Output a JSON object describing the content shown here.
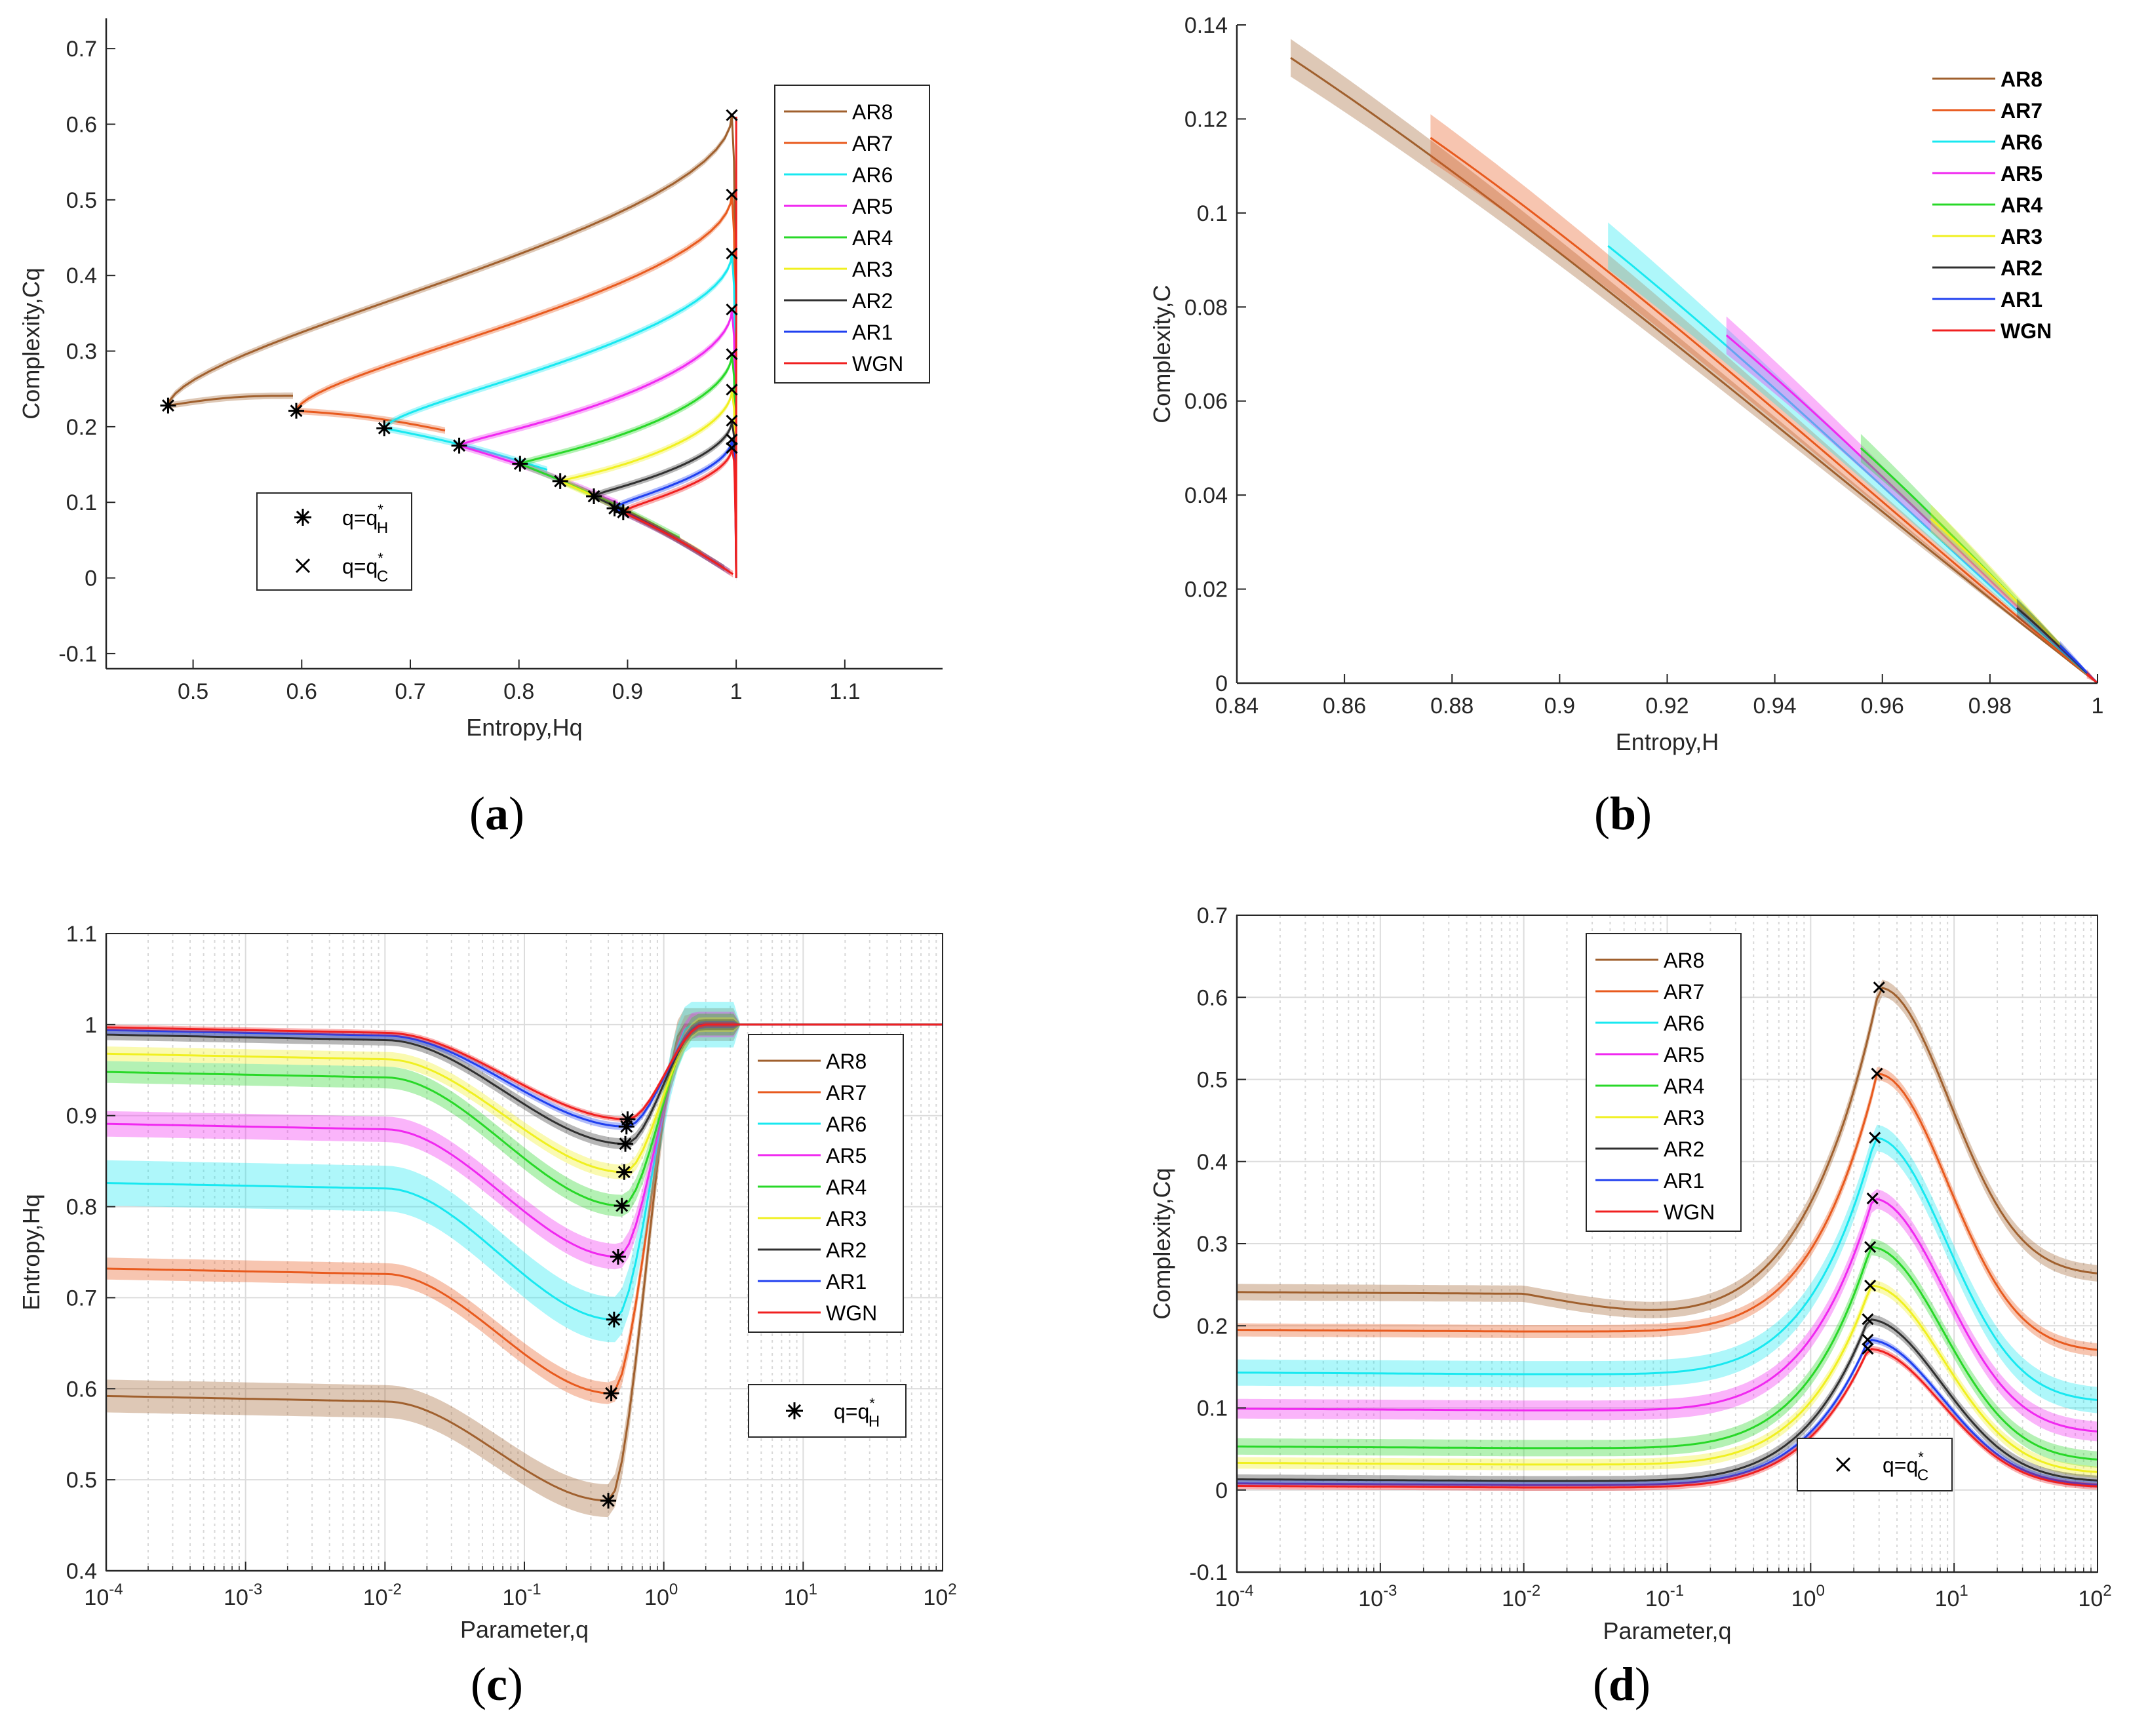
{
  "series_colors": {
    "AR8": "#a0602e",
    "AR7": "#e85a1e",
    "AR6": "#18e8f0",
    "AR5": "#f028f0",
    "AR4": "#28d828",
    "AR3": "#f0f020",
    "AR2": "#303030",
    "AR1": "#2040f0",
    "WGN": "#f02020"
  },
  "chart_data": [
    {
      "id": "a",
      "caption": "a",
      "type": "line",
      "xlabel": "Entropy,Hq",
      "ylabel": "Complexity,Cq",
      "xlim": [
        0.42,
        1.19
      ],
      "ylim": [
        -0.12,
        0.74
      ],
      "xticks": [
        0.5,
        0.6,
        0.7,
        0.8,
        0.9,
        1,
        1.1
      ],
      "xtick_labels": [
        "0.5",
        "0.6",
        "0.7",
        "0.8",
        "0.9",
        "1",
        "1.1"
      ],
      "yticks": [
        -0.1,
        0,
        0.1,
        0.2,
        0.3,
        0.4,
        0.5,
        0.6,
        0.7
      ],
      "ytick_labels": [
        "-0.1",
        "0",
        "0.1",
        "0.2",
        "0.3",
        "0.4",
        "0.5",
        "0.6",
        "0.7"
      ],
      "grid": false,
      "legend": [
        "AR8",
        "AR7",
        "AR6",
        "AR5",
        "AR4",
        "AR3",
        "AR2",
        "AR1",
        "WGN"
      ],
      "legend_position": "top-right",
      "marker_legend": [
        {
          "symbol": "*",
          "label": "q=q",
          "sup": "*",
          "sub": "H"
        },
        {
          "symbol": "×",
          "label": "q=q",
          "sup": "*",
          "sub": "C"
        }
      ],
      "marker_legend_position": "bottom-left",
      "series": [
        {
          "name": "AR8",
          "H_low": 0.592,
          "C_low": 0.241,
          "H_min": 0.477,
          "C_at_Hmin": 0.228,
          "C_mid": 0.22,
          "C_max": 0.612
        },
        {
          "name": "AR7",
          "H_low": 0.732,
          "C_low": 0.195,
          "H_min": 0.595,
          "C_at_Hmin": 0.221,
          "C_mid": 0.205,
          "C_max": 0.507
        },
        {
          "name": "AR6",
          "H_low": 0.826,
          "C_low": 0.143,
          "H_min": 0.676,
          "C_at_Hmin": 0.198,
          "C_mid": 0.175,
          "C_max": 0.429
        },
        {
          "name": "AR5",
          "H_low": 0.891,
          "C_low": 0.099,
          "H_min": 0.745,
          "C_at_Hmin": 0.175,
          "C_mid": 0.14,
          "C_max": 0.355
        },
        {
          "name": "AR4",
          "H_low": 0.948,
          "C_low": 0.053,
          "H_min": 0.801,
          "C_at_Hmin": 0.151,
          "C_mid": 0.12,
          "C_max": 0.296
        },
        {
          "name": "AR3",
          "H_low": 0.968,
          "C_low": 0.033,
          "H_min": 0.838,
          "C_at_Hmin": 0.128,
          "C_mid": 0.1,
          "C_max": 0.249
        },
        {
          "name": "AR2",
          "H_low": 0.989,
          "C_low": 0.013,
          "H_min": 0.869,
          "C_at_Hmin": 0.108,
          "C_mid": 0.09,
          "C_max": 0.208
        },
        {
          "name": "AR1",
          "H_low": 0.994,
          "C_low": 0.008,
          "H_min": 0.888,
          "C_at_Hmin": 0.092,
          "C_mid": 0.08,
          "C_max": 0.183
        },
        {
          "name": "WGN",
          "H_low": 0.997,
          "C_low": 0.005,
          "H_min": 0.896,
          "C_at_Hmin": 0.087,
          "C_mid": 0.075,
          "C_max": 0.172
        }
      ]
    },
    {
      "id": "b",
      "caption": "b",
      "type": "line",
      "xlabel": "Entropy,H",
      "ylabel": "Complexity,C",
      "xlim": [
        0.84,
        1.0
      ],
      "ylim": [
        0,
        0.14
      ],
      "xticks": [
        0.84,
        0.86,
        0.88,
        0.9,
        0.92,
        0.94,
        0.96,
        0.98,
        1
      ],
      "xtick_labels": [
        "0.84",
        "0.86",
        "0.88",
        "0.9",
        "0.92",
        "0.94",
        "0.96",
        "0.98",
        "1"
      ],
      "yticks": [
        0,
        0.02,
        0.04,
        0.06,
        0.08,
        0.1,
        0.12,
        0.14
      ],
      "ytick_labels": [
        "0",
        "0.02",
        "0.04",
        "0.06",
        "0.08",
        "0.1",
        "0.12",
        "0.14"
      ],
      "grid": false,
      "legend": [
        "AR8",
        "AR7",
        "AR6",
        "AR5",
        "AR4",
        "AR3",
        "AR2",
        "AR1",
        "WGN"
      ],
      "legend_position": "top-right",
      "series": [
        {
          "name": "AR8",
          "H_start": 0.85,
          "C_start": 0.133,
          "band": 0.004
        },
        {
          "name": "AR7",
          "H_start": 0.876,
          "C_start": 0.116,
          "band": 0.005
        },
        {
          "name": "AR6",
          "H_start": 0.909,
          "C_start": 0.093,
          "band": 0.005
        },
        {
          "name": "AR5",
          "H_start": 0.931,
          "C_start": 0.074,
          "band": 0.004
        },
        {
          "name": "AR4",
          "H_start": 0.956,
          "C_start": 0.05,
          "band": 0.003
        },
        {
          "name": "AR3",
          "H_start": 0.969,
          "C_start": 0.035,
          "band": 0.003
        },
        {
          "name": "AR2",
          "H_start": 0.985,
          "C_start": 0.016,
          "band": 0.002
        },
        {
          "name": "AR1",
          "H_start": 0.993,
          "C_start": 0.008,
          "band": 0.001
        },
        {
          "name": "WGN",
          "H_start": 0.998,
          "C_start": 0.002,
          "band": 0.001
        }
      ]
    },
    {
      "id": "c",
      "caption": "c",
      "type": "line",
      "xscale": "log",
      "xlabel": "Parameter,q",
      "ylabel": "Entropy,Hq",
      "xlim": [
        0.0001,
        100
      ],
      "ylim": [
        0.4,
        1.1
      ],
      "xtick_base": [
        "10",
        "10",
        "10",
        "10",
        "10",
        "10",
        "10"
      ],
      "xtick_exp": [
        "-4",
        "-3",
        "-2",
        "-1",
        "0",
        "1",
        "2"
      ],
      "yticks": [
        0.4,
        0.5,
        0.6,
        0.7,
        0.8,
        0.9,
        1,
        1.1
      ],
      "ytick_labels": [
        "0.4",
        "0.5",
        "0.6",
        "0.7",
        "0.8",
        "0.9",
        "1",
        "1.1"
      ],
      "grid": true,
      "legend": [
        "AR8",
        "AR7",
        "AR6",
        "AR5",
        "AR4",
        "AR3",
        "AR2",
        "AR1",
        "WGN"
      ],
      "legend_position": "right",
      "marker_legend": [
        {
          "symbol": "*",
          "label": "q=q",
          "sup": "*",
          "sub": "H"
        }
      ],
      "series": [
        {
          "name": "AR8",
          "H_low": 0.592,
          "H_min": 0.477,
          "q_min": 0.4,
          "band": 0.018
        },
        {
          "name": "AR7",
          "H_low": 0.732,
          "H_min": 0.595,
          "q_min": 0.42,
          "band": 0.012
        },
        {
          "name": "AR6",
          "H_low": 0.826,
          "H_min": 0.676,
          "q_min": 0.44,
          "band": 0.025
        },
        {
          "name": "AR5",
          "H_low": 0.891,
          "H_min": 0.745,
          "q_min": 0.47,
          "band": 0.014
        },
        {
          "name": "AR4",
          "H_low": 0.948,
          "H_min": 0.801,
          "q_min": 0.5,
          "band": 0.012
        },
        {
          "name": "AR3",
          "H_low": 0.968,
          "H_min": 0.838,
          "q_min": 0.52,
          "band": 0.008
        },
        {
          "name": "AR2",
          "H_low": 0.989,
          "H_min": 0.869,
          "q_min": 0.53,
          "band": 0.006
        },
        {
          "name": "AR1",
          "H_low": 0.994,
          "H_min": 0.888,
          "q_min": 0.54,
          "band": 0.004
        },
        {
          "name": "WGN",
          "H_low": 0.997,
          "H_min": 0.896,
          "q_min": 0.55,
          "band": 0.003
        }
      ]
    },
    {
      "id": "d",
      "caption": "d",
      "type": "line",
      "xscale": "log",
      "xlabel": "Parameter,q",
      "ylabel": "Complexity,Cq",
      "xlim": [
        0.0001,
        100
      ],
      "ylim": [
        -0.1,
        0.7
      ],
      "xtick_base": [
        "10",
        "10",
        "10",
        "10",
        "10",
        "10",
        "10"
      ],
      "xtick_exp": [
        "-4",
        "-3",
        "-2",
        "-1",
        "0",
        "1",
        "2"
      ],
      "yticks": [
        -0.1,
        0,
        0.1,
        0.2,
        0.3,
        0.4,
        0.5,
        0.6,
        0.7
      ],
      "ytick_labels": [
        "-0.1",
        "0",
        "0.1",
        "0.2",
        "0.3",
        "0.4",
        "0.5",
        "0.6",
        "0.7"
      ],
      "grid": true,
      "legend": [
        "AR8",
        "AR7",
        "AR6",
        "AR5",
        "AR4",
        "AR3",
        "AR2",
        "AR1",
        "WGN"
      ],
      "legend_position": "top-left",
      "marker_legend": [
        {
          "symbol": "×",
          "label": "q=q",
          "sup": "*",
          "sub": "C"
        }
      ],
      "series": [
        {
          "name": "AR8",
          "C_low": 0.241,
          "C_dip": 0.219,
          "C_max": 0.612,
          "q_max": 3.0,
          "C_end": 0.261,
          "band": 0.01
        },
        {
          "name": "AR7",
          "C_low": 0.195,
          "C_dip": 0.195,
          "C_max": 0.507,
          "q_max": 2.9,
          "C_end": 0.168,
          "band": 0.008
        },
        {
          "name": "AR6",
          "C_low": 0.143,
          "C_dip": 0.143,
          "C_max": 0.429,
          "q_max": 2.8,
          "C_end": 0.107,
          "band": 0.016
        },
        {
          "name": "AR5",
          "C_low": 0.099,
          "C_dip": 0.099,
          "C_max": 0.355,
          "q_max": 2.7,
          "C_end": 0.069,
          "band": 0.012
        },
        {
          "name": "AR4",
          "C_low": 0.053,
          "C_dip": 0.053,
          "C_max": 0.296,
          "q_max": 2.6,
          "C_end": 0.035,
          "band": 0.01
        },
        {
          "name": "AR3",
          "C_low": 0.033,
          "C_dip": 0.033,
          "C_max": 0.249,
          "q_max": 2.6,
          "C_end": 0.02,
          "band": 0.007
        },
        {
          "name": "AR2",
          "C_low": 0.013,
          "C_dip": 0.013,
          "C_max": 0.208,
          "q_max": 2.5,
          "C_end": 0.01,
          "band": 0.006
        },
        {
          "name": "AR1",
          "C_low": 0.008,
          "C_dip": 0.008,
          "C_max": 0.183,
          "q_max": 2.5,
          "C_end": 0.005,
          "band": 0.004
        },
        {
          "name": "WGN",
          "C_low": 0.005,
          "C_dip": 0.005,
          "C_max": 0.172,
          "q_max": 2.5,
          "C_end": 0.003,
          "band": 0.004
        }
      ]
    }
  ]
}
